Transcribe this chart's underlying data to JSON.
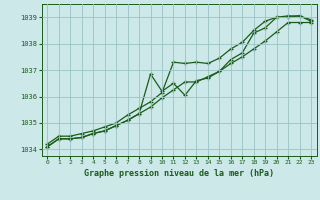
{
  "hours": [
    0,
    1,
    2,
    3,
    4,
    5,
    6,
    7,
    8,
    9,
    10,
    11,
    12,
    13,
    14,
    15,
    16,
    17,
    18,
    19,
    20,
    21,
    22,
    23
  ],
  "line1": [
    1034.2,
    1034.5,
    1034.5,
    1034.6,
    1034.7,
    1034.85,
    1035.0,
    1035.3,
    1035.55,
    1035.8,
    1036.15,
    1037.3,
    1037.25,
    1037.3,
    1037.25,
    1037.45,
    1037.8,
    1038.05,
    1038.5,
    1038.85,
    1039.0,
    1039.05,
    1039.05,
    1038.9
  ],
  "line2": [
    1034.1,
    1034.4,
    1034.4,
    1034.45,
    1034.6,
    1034.7,
    1034.9,
    1035.1,
    1035.35,
    1035.6,
    1035.95,
    1036.25,
    1036.55,
    1036.55,
    1036.75,
    1036.95,
    1037.25,
    1037.5,
    1037.8,
    1038.1,
    1038.45,
    1038.8,
    1038.8,
    1038.8
  ],
  "line3": [
    1034.1,
    1034.4,
    1034.4,
    1034.45,
    1034.6,
    1034.7,
    1034.9,
    1035.1,
    1035.35,
    1036.85,
    1036.2,
    1036.5,
    1036.05,
    1036.6,
    1036.7,
    1036.95,
    1037.4,
    1037.65,
    1038.4,
    1038.6,
    1039.0,
    1039.0,
    1039.05,
    1038.85
  ],
  "bg_color": "#cce8e8",
  "grid_color": "#99c4c4",
  "line_color": "#1a5c1a",
  "xlabel": "Graphe pression niveau de la mer (hPa)",
  "xlim": [
    -0.5,
    23.5
  ],
  "ylim": [
    1033.75,
    1039.5
  ],
  "yticks": [
    1034,
    1035,
    1036,
    1037,
    1038,
    1039
  ],
  "xticks": [
    0,
    1,
    2,
    3,
    4,
    5,
    6,
    7,
    8,
    9,
    10,
    11,
    12,
    13,
    14,
    15,
    16,
    17,
    18,
    19,
    20,
    21,
    22,
    23
  ]
}
